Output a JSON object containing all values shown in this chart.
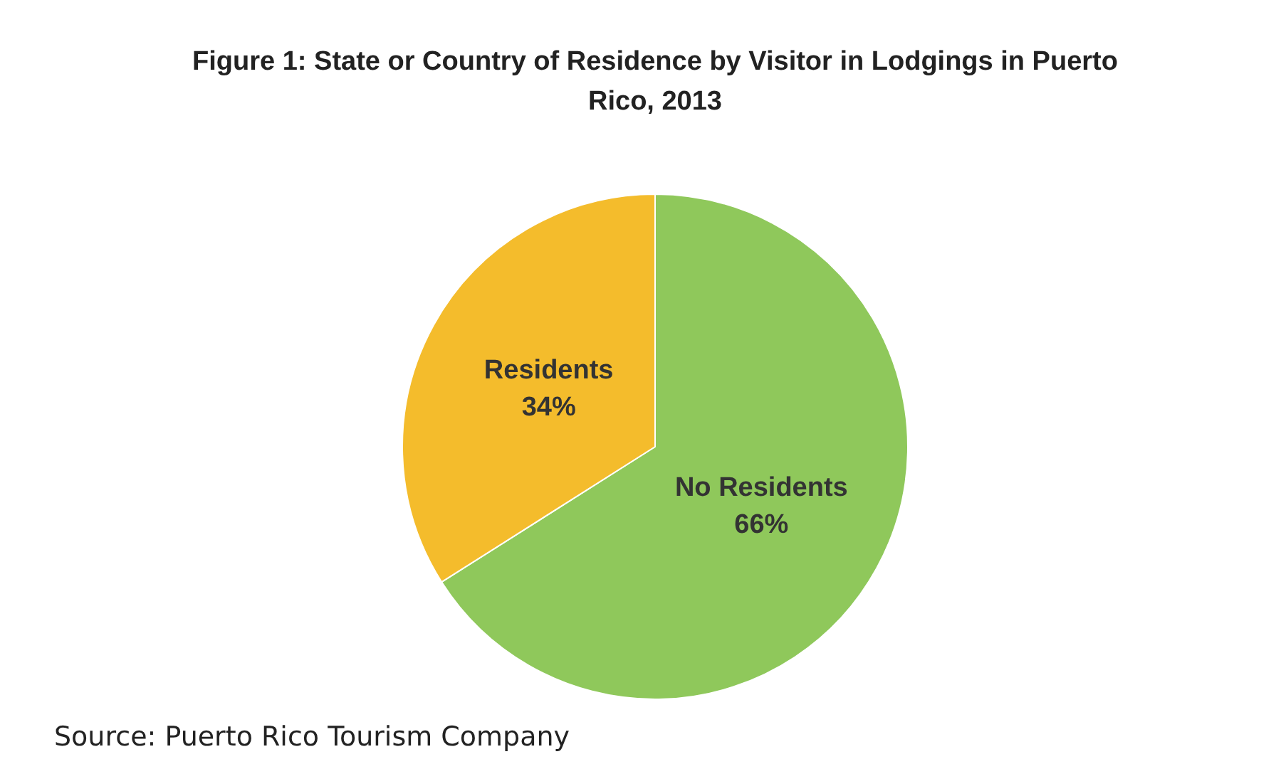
{
  "chart_data": {
    "type": "pie",
    "title": "Figure 1: State or Country of Residence by Visitor in Lodgings in Puerto Rico, 2013",
    "categories": [
      "No Residents",
      "Residents"
    ],
    "values": [
      66,
      34
    ],
    "colors": [
      "#8fc85b",
      "#f4bc2c"
    ],
    "value_labels": [
      "66%",
      "34%"
    ],
    "legend": false,
    "annotations": [
      "Source: Puerto Rico Tourism Company"
    ]
  }
}
